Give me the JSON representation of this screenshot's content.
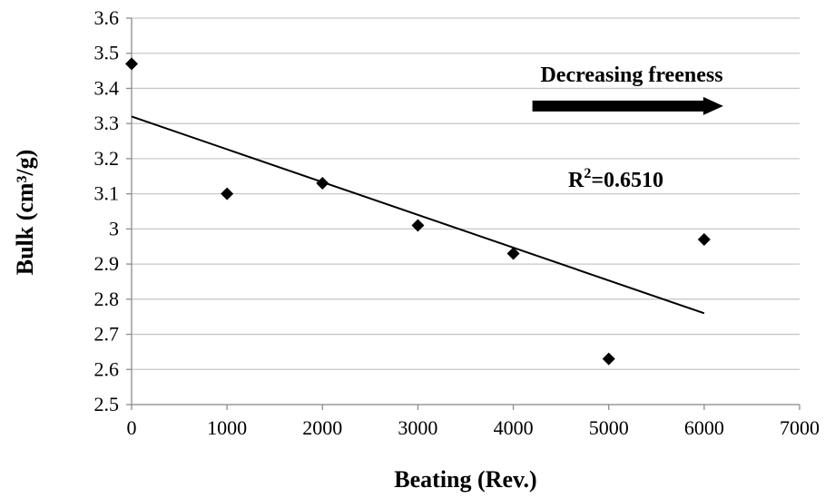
{
  "chart_data": {
    "type": "scatter",
    "xlabel": "Beating (Rev.)",
    "ylabel": "Bulk (cm³/g)",
    "xlim": [
      0,
      7000
    ],
    "ylim": [
      2.5,
      3.6
    ],
    "x_ticks": [
      0,
      1000,
      2000,
      3000,
      4000,
      5000,
      6000,
      7000
    ],
    "x_tick_labels": [
      "0",
      "1000",
      "2000",
      "3000",
      "4000",
      "5000",
      "6000",
      "7000"
    ],
    "y_ticks": [
      2.5,
      2.6,
      2.7,
      2.8,
      2.9,
      3.0,
      3.1,
      3.2,
      3.3,
      3.4,
      3.5,
      3.6
    ],
    "y_tick_labels": [
      "2.5",
      "2.6",
      "2.7",
      "2.8",
      "2.9",
      "3",
      "3.1",
      "3.2",
      "3.3",
      "3.4",
      "3.5",
      "3.6"
    ],
    "grid": "horizontal",
    "series": [
      {
        "marker": "diamond",
        "color": "#000000",
        "x": [
          0,
          1000,
          2000,
          3000,
          4000,
          5000,
          6000
        ],
        "y": [
          3.47,
          3.1,
          3.13,
          3.01,
          2.93,
          2.63,
          2.97
        ]
      }
    ],
    "trendline": {
      "x": [
        0,
        6000
      ],
      "y": [
        3.32,
        2.76
      ],
      "color": "#000000"
    },
    "annotations": {
      "arrow_label": "Decreasing freeness",
      "r_squared_prefix": "R",
      "r_squared_sup": "2",
      "r_squared_value": "=0.6510"
    },
    "arrow": {
      "x_start": 4200,
      "x_end": 6200,
      "y": 3.35
    }
  }
}
